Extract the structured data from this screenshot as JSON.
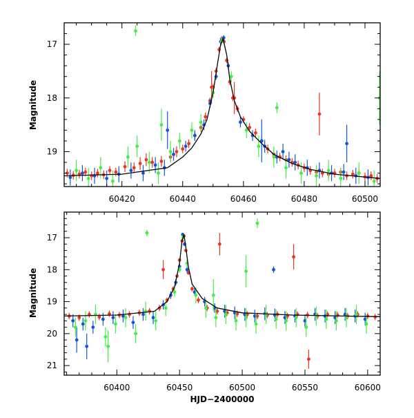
{
  "colors": {
    "red": "#ee3322",
    "blue": "#1155dd",
    "green": "#44ee44",
    "model": "#000000"
  },
  "chart_data": [
    {
      "type": "scatter",
      "title": "",
      "xlabel": "",
      "ylabel": "Magnitude",
      "xlim": [
        60401,
        60505
      ],
      "ylim": [
        19.65,
        16.6
      ],
      "y_inverted": true,
      "grid": false,
      "legend": "none",
      "xticks": [
        60420,
        60440,
        60460,
        60480,
        60500
      ],
      "yticks": [
        17,
        18,
        19
      ],
      "x_minor_step": 5,
      "y_minor_step": 0.2,
      "model_curve": {
        "x": [
          60401,
          60420,
          60435,
          60440,
          60443,
          60446,
          60448,
          60450,
          60451.5,
          60452.5,
          60453.3,
          60454.5,
          60455.5,
          60457,
          60459,
          60462,
          60466,
          60470,
          60476,
          60482,
          60490,
          60505
        ],
        "y": [
          19.45,
          19.42,
          19.3,
          19.1,
          18.93,
          18.67,
          18.4,
          17.9,
          17.35,
          17.0,
          16.9,
          17.2,
          17.65,
          18.05,
          18.35,
          18.62,
          18.85,
          19.05,
          19.22,
          19.33,
          19.42,
          19.5
        ]
      },
      "series": [
        {
          "name": "",
          "color": "red",
          "x": [
            60402,
            60404,
            60406,
            60408,
            60410,
            60412,
            60414,
            60416,
            60418,
            60421,
            60424,
            60426,
            60428,
            60430,
            60433,
            60436,
            60438,
            60440,
            60442,
            60444,
            60446,
            60447.5,
            60449,
            60450,
            60451,
            60452,
            60452.8,
            60453.6,
            60454.5,
            60455.5,
            60456.5,
            60458,
            60460,
            60462,
            60464,
            60466,
            60468,
            60470,
            60472,
            60474,
            60476,
            60478,
            60480,
            60482,
            60484,
            60486,
            60488,
            60490,
            60492,
            60494,
            60496,
            60498,
            60500,
            60502,
            60504,
            60449.5,
            60457,
            60485
          ],
          "y": [
            19.4,
            19.44,
            19.42,
            19.38,
            19.45,
            19.4,
            19.43,
            19.35,
            19.38,
            19.28,
            19.3,
            19.22,
            19.15,
            19.2,
            19.18,
            19.1,
            19.0,
            18.95,
            18.85,
            18.7,
            18.55,
            18.35,
            18.05,
            17.8,
            17.5,
            17.1,
            16.9,
            16.95,
            17.3,
            17.7,
            18.0,
            18.2,
            18.4,
            18.55,
            18.65,
            18.8,
            18.95,
            19.05,
            19.1,
            19.15,
            19.2,
            19.25,
            19.3,
            19.35,
            19.38,
            19.4,
            19.42,
            19.4,
            19.38,
            19.45,
            19.42,
            19.4,
            19.47,
            19.45,
            19.5,
            17.8,
            18.0,
            18.3
          ],
          "err": [
            0.08,
            0.08,
            0.08,
            0.08,
            0.08,
            0.08,
            0.08,
            0.08,
            0.08,
            0.1,
            0.1,
            0.12,
            0.12,
            0.1,
            0.1,
            0.1,
            0.1,
            0.08,
            0.08,
            0.08,
            0.08,
            0.08,
            0.06,
            0.06,
            0.06,
            0.05,
            0.05,
            0.05,
            0.05,
            0.06,
            0.06,
            0.06,
            0.06,
            0.08,
            0.08,
            0.08,
            0.08,
            0.08,
            0.08,
            0.08,
            0.08,
            0.08,
            0.08,
            0.08,
            0.08,
            0.08,
            0.08,
            0.08,
            0.08,
            0.08,
            0.08,
            0.08,
            0.08,
            0.08,
            0.08,
            0.3,
            0.3,
            0.4
          ]
        },
        {
          "name": "",
          "color": "blue",
          "x": [
            60403,
            60407,
            60411,
            60415,
            60419,
            60423,
            60427,
            60431,
            60434,
            60437,
            60441,
            60444,
            60447,
            60449,
            60451,
            60452.5,
            60453.5,
            60455,
            60459,
            60463,
            60467,
            60471,
            60473,
            60475,
            60477,
            60481,
            60485,
            60489,
            60493,
            60497,
            60501,
            60435,
            60466,
            60494
          ],
          "y": [
            19.48,
            19.4,
            19.45,
            19.5,
            19.42,
            19.35,
            19.4,
            19.25,
            19.3,
            19.05,
            18.9,
            18.7,
            18.5,
            18.1,
            17.6,
            16.95,
            16.88,
            17.4,
            18.45,
            18.7,
            18.9,
            19.1,
            19.0,
            19.15,
            19.2,
            19.3,
            19.35,
            19.4,
            19.38,
            19.45,
            19.48,
            18.6,
            18.8,
            18.85
          ],
          "err": [
            0.15,
            0.15,
            0.15,
            0.15,
            0.15,
            0.15,
            0.15,
            0.15,
            0.15,
            0.12,
            0.1,
            0.1,
            0.1,
            0.08,
            0.06,
            0.05,
            0.05,
            0.06,
            0.1,
            0.1,
            0.12,
            0.12,
            0.15,
            0.15,
            0.15,
            0.15,
            0.15,
            0.15,
            0.15,
            0.15,
            0.15,
            0.35,
            0.4,
            0.35
          ]
        },
        {
          "name": "",
          "color": "green",
          "x": [
            60405,
            60409,
            60413,
            60417,
            60422,
            60425,
            60429,
            60432,
            60436,
            60439,
            60443,
            60446,
            60450,
            60452.8,
            60456,
            60461,
            60465,
            60470,
            60474,
            60479,
            60484,
            60488,
            60492,
            60498,
            60503,
            60424.5,
            60433,
            60471,
            60504.8
          ],
          "y": [
            19.35,
            19.5,
            19.3,
            19.55,
            19.1,
            18.9,
            19.2,
            19.4,
            19.0,
            18.8,
            18.6,
            18.45,
            17.9,
            16.95,
            17.6,
            18.6,
            18.9,
            19.1,
            19.3,
            19.4,
            19.45,
            19.35,
            19.5,
            19.4,
            19.55,
            16.75,
            18.5,
            18.18,
            18.0
          ],
          "err": [
            0.2,
            0.2,
            0.2,
            0.2,
            0.2,
            0.2,
            0.2,
            0.2,
            0.2,
            0.15,
            0.15,
            0.15,
            0.1,
            0.08,
            0.1,
            0.15,
            0.2,
            0.2,
            0.2,
            0.2,
            0.2,
            0.2,
            0.2,
            0.2,
            0.2,
            0.1,
            0.3,
            0.1,
            0.5
          ]
        }
      ]
    },
    {
      "type": "scatter",
      "title": "",
      "xlabel": "HJD−2400000",
      "ylabel": "Magnitude",
      "xlim": [
        60358,
        60610
      ],
      "ylim": [
        21.3,
        16.2
      ],
      "y_inverted": true,
      "grid": false,
      "legend": "none",
      "xticks": [
        60400,
        60450,
        60500,
        60550,
        60600
      ],
      "yticks": [
        17,
        18,
        19,
        20,
        21
      ],
      "x_minor_step": 10,
      "y_minor_step": 0.2,
      "model_curve": {
        "x": [
          60358,
          60400,
          60430,
          60440,
          60446,
          60450,
          60452,
          60453.5,
          60455,
          60457,
          60460,
          60468,
          60480,
          60500,
          60540,
          60580,
          60610
        ],
        "y": [
          19.45,
          19.42,
          19.3,
          19.0,
          18.55,
          17.8,
          17.1,
          16.9,
          17.3,
          17.9,
          18.45,
          18.9,
          19.2,
          19.35,
          19.42,
          19.45,
          19.47
        ]
      },
      "series": [
        {
          "name": "",
          "color": "red",
          "x": [
            60362,
            60370,
            60378,
            60386,
            60394,
            60402,
            60410,
            60418,
            60426,
            60434,
            60440,
            60445,
            60448,
            60450,
            60452,
            60453.5,
            60455,
            60457,
            60460,
            60465,
            60472,
            60480,
            60488,
            60496,
            60504,
            60512,
            60520,
            60528,
            60536,
            60544,
            60552,
            60560,
            60568,
            60576,
            60584,
            60592,
            60600,
            60606,
            60553,
            60541,
            60482,
            60437
          ],
          "y": [
            19.45,
            19.5,
            19.4,
            19.48,
            19.38,
            19.42,
            19.4,
            19.35,
            19.3,
            19.2,
            18.95,
            18.6,
            18.2,
            17.7,
            17.1,
            16.95,
            17.4,
            18.1,
            18.6,
            18.95,
            19.2,
            19.3,
            19.35,
            19.38,
            19.4,
            19.45,
            19.42,
            19.4,
            19.45,
            19.4,
            19.42,
            19.45,
            19.4,
            19.42,
            19.45,
            19.4,
            19.45,
            19.48,
            20.8,
            17.6,
            17.2,
            18.0
          ],
          "err": [
            0.1,
            0.1,
            0.1,
            0.1,
            0.1,
            0.1,
            0.1,
            0.1,
            0.1,
            0.1,
            0.08,
            0.08,
            0.06,
            0.06,
            0.05,
            0.05,
            0.05,
            0.06,
            0.08,
            0.1,
            0.1,
            0.1,
            0.1,
            0.1,
            0.1,
            0.1,
            0.1,
            0.1,
            0.1,
            0.1,
            0.1,
            0.1,
            0.1,
            0.1,
            0.1,
            0.1,
            0.1,
            0.1,
            0.3,
            0.4,
            0.35,
            0.3
          ]
        },
        {
          "name": "",
          "color": "blue",
          "x": [
            60365,
            60373,
            60381,
            60389,
            60397,
            60405,
            60413,
            60421,
            60429,
            60437,
            60443,
            60447,
            60450,
            60452.5,
            60454,
            60456,
            60462,
            60470,
            60478,
            60486,
            60494,
            60502,
            60510,
            60518,
            60526,
            60534,
            60542,
            60550,
            60558,
            60566,
            60574,
            60582,
            60590,
            60598,
            60525,
            60368,
            60376
          ],
          "y": [
            19.6,
            19.7,
            19.8,
            19.55,
            19.5,
            19.45,
            19.65,
            19.4,
            19.5,
            19.1,
            18.8,
            18.4,
            17.9,
            16.9,
            17.2,
            18.0,
            18.7,
            19.0,
            19.2,
            19.3,
            19.35,
            19.4,
            19.45,
            19.38,
            19.42,
            19.5,
            19.45,
            19.6,
            19.4,
            19.45,
            19.5,
            19.4,
            19.45,
            19.55,
            18.0,
            20.2,
            20.4
          ],
          "err": [
            0.2,
            0.2,
            0.2,
            0.2,
            0.2,
            0.2,
            0.2,
            0.2,
            0.2,
            0.15,
            0.12,
            0.1,
            0.08,
            0.05,
            0.06,
            0.08,
            0.12,
            0.15,
            0.15,
            0.2,
            0.2,
            0.2,
            0.2,
            0.2,
            0.2,
            0.2,
            0.2,
            0.2,
            0.2,
            0.2,
            0.2,
            0.2,
            0.2,
            0.2,
            0.1,
            0.4,
            0.4
          ]
        },
        {
          "name": "",
          "color": "green",
          "x": [
            60367,
            60375,
            60383,
            60391,
            60399,
            60407,
            60415,
            60423,
            60431,
            60439,
            60446,
            60450,
            60452.8,
            60456,
            60463,
            60471,
            60479,
            60487,
            60495,
            60503,
            60511,
            60519,
            60527,
            60535,
            60543,
            60551,
            60559,
            60567,
            60575,
            60583,
            60591,
            60599,
            60424,
            60512,
            60503,
            60393,
            60477
          ],
          "y": [
            19.8,
            19.6,
            19.4,
            20.1,
            19.7,
            19.5,
            20.0,
            19.3,
            19.6,
            19.2,
            18.7,
            18.0,
            17.0,
            17.8,
            18.8,
            19.2,
            19.5,
            19.4,
            19.6,
            19.5,
            19.7,
            19.4,
            19.55,
            19.6,
            19.5,
            19.8,
            19.45,
            19.55,
            19.6,
            19.5,
            19.4,
            19.7,
            16.85,
            16.55,
            18.05,
            20.4,
            18.8
          ],
          "err": [
            0.3,
            0.3,
            0.3,
            0.3,
            0.3,
            0.3,
            0.3,
            0.3,
            0.3,
            0.25,
            0.15,
            0.1,
            0.08,
            0.12,
            0.25,
            0.3,
            0.3,
            0.3,
            0.3,
            0.3,
            0.3,
            0.3,
            0.3,
            0.3,
            0.3,
            0.3,
            0.3,
            0.3,
            0.3,
            0.3,
            0.3,
            0.3,
            0.1,
            0.15,
            0.5,
            0.5,
            0.5
          ]
        }
      ]
    }
  ]
}
